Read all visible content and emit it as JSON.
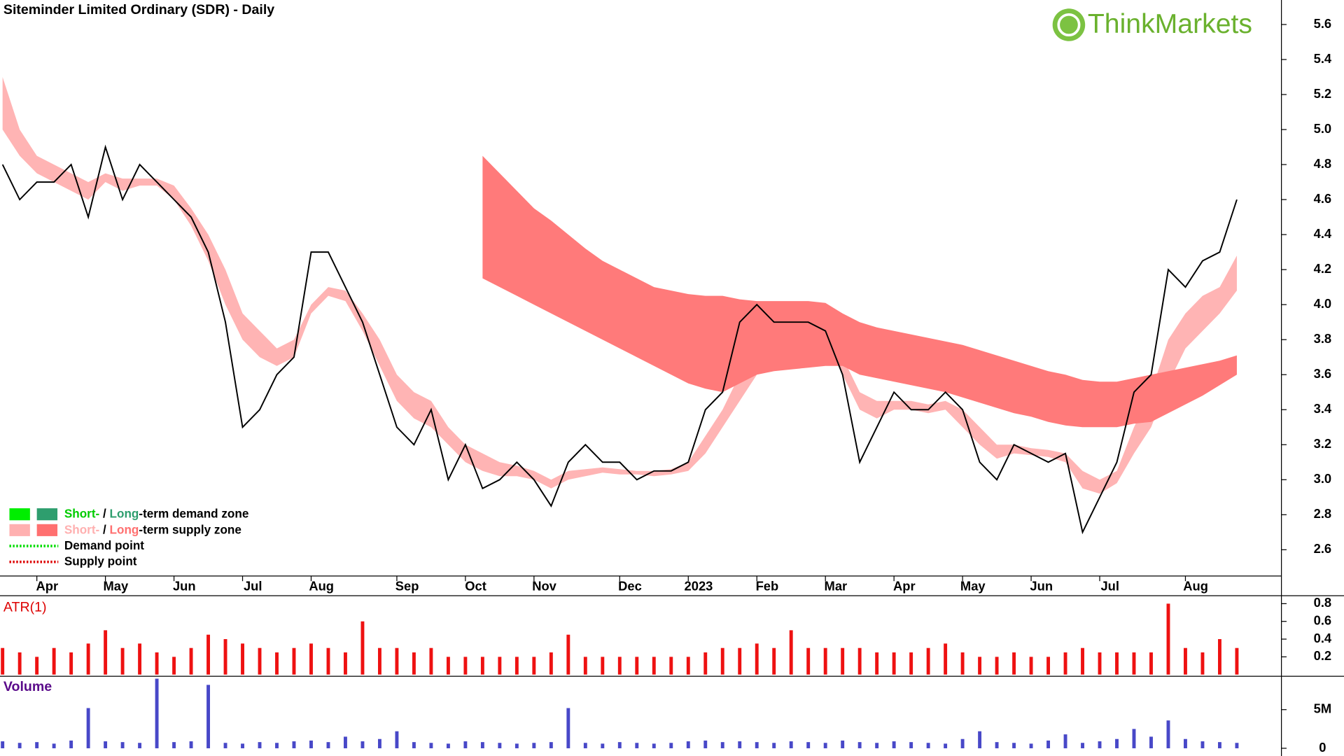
{
  "logo": "ThinkMarkets",
  "legend": {
    "position": "bottom-left",
    "items": [
      {
        "parts": [
          "Short-",
          " / ",
          "Long",
          "-term demand zone"
        ],
        "colors": [
          "#00ee00",
          "#2e9e6e"
        ],
        "text_colors": [
          "#00cc00",
          "#000000",
          "#2e9e6e",
          "#000000"
        ]
      },
      {
        "parts": [
          "Short-",
          " / ",
          "Long",
          "-term supply zone"
        ],
        "colors": [
          "#ffb0b0",
          "#ff7070"
        ],
        "text_colors": [
          "#ffb0b0",
          "#000000",
          "#ff7070",
          "#000000"
        ]
      },
      {
        "parts": [
          "Demand point"
        ],
        "colors": [
          "#00dd00"
        ],
        "style": "dotted"
      },
      {
        "parts": [
          "Supply point"
        ],
        "colors": [
          "#dd0000"
        ],
        "style": "dotted"
      }
    ]
  },
  "chart_data": [
    {
      "type": "line",
      "title": "Siteminder Limited Ordinary (SDR) - Daily",
      "categories": [
        null,
        null,
        "Apr",
        null,
        null,
        null,
        "May",
        null,
        null,
        null,
        "Jun",
        null,
        null,
        null,
        "Jul",
        null,
        null,
        null,
        "Aug",
        null,
        null,
        null,
        null,
        "Sep",
        null,
        null,
        null,
        "Oct",
        null,
        null,
        null,
        "Nov",
        null,
        null,
        null,
        null,
        "Dec",
        null,
        null,
        null,
        "2023",
        null,
        null,
        null,
        "Feb",
        null,
        null,
        null,
        "Mar",
        null,
        null,
        null,
        "Apr",
        null,
        null,
        null,
        "May",
        null,
        null,
        null,
        "Jun",
        null,
        null,
        null,
        "Jul",
        null,
        null,
        null,
        null,
        "Aug",
        null,
        null,
        null
      ],
      "color": "#000000",
      "values": [
        4.8,
        4.6,
        4.7,
        4.7,
        4.8,
        4.5,
        4.9,
        4.6,
        4.8,
        4.7,
        4.6,
        4.5,
        4.3,
        3.9,
        3.3,
        3.4,
        3.6,
        3.7,
        4.3,
        4.3,
        4.1,
        3.9,
        3.6,
        3.3,
        3.2,
        3.4,
        3.0,
        3.2,
        2.95,
        3.0,
        3.1,
        3.0,
        2.85,
        3.1,
        3.2,
        3.1,
        3.1,
        3.0,
        3.05,
        3.05,
        3.1,
        3.4,
        3.5,
        3.9,
        4.0,
        3.9,
        3.9,
        3.9,
        3.85,
        3.6,
        3.1,
        3.3,
        3.5,
        3.4,
        3.4,
        3.5,
        3.4,
        3.1,
        3.0,
        3.2,
        3.15,
        3.1,
        3.15,
        2.7,
        2.9,
        3.1,
        3.5,
        3.6,
        4.2,
        4.1,
        4.25,
        4.3,
        4.6
      ],
      "bands": [
        {
          "color": "#ffb4b4",
          "upper": [
            5.3,
            5.0,
            4.85,
            4.8,
            4.75,
            4.7,
            4.75,
            4.72,
            4.72,
            4.72,
            4.68,
            4.55,
            4.4,
            4.2,
            3.95,
            3.85,
            3.75,
            3.8,
            4.0,
            4.1,
            4.08,
            3.95,
            3.8,
            3.6,
            3.5,
            3.45,
            3.3,
            3.2,
            3.15,
            3.1,
            3.08,
            3.05,
            3.0,
            3.05,
            3.06,
            3.07,
            3.06,
            3.05,
            3.05,
            3.06,
            3.1,
            3.25,
            3.4,
            3.6,
            3.75,
            3.8,
            3.85,
            3.9,
            3.88,
            3.7,
            3.5,
            3.45,
            3.45,
            3.45,
            3.43,
            3.45,
            3.4,
            3.3,
            3.2,
            3.2,
            3.18,
            3.17,
            3.15,
            3.05,
            3.0,
            3.05,
            3.3,
            3.5,
            3.8,
            3.95,
            4.05,
            4.1,
            4.28
          ],
          "lower": [
            5.0,
            4.85,
            4.75,
            4.7,
            4.65,
            4.6,
            4.7,
            4.65,
            4.68,
            4.68,
            4.6,
            4.45,
            4.25,
            4.0,
            3.8,
            3.7,
            3.65,
            3.7,
            3.95,
            4.05,
            4.02,
            3.85,
            3.65,
            3.45,
            3.35,
            3.3,
            3.2,
            3.1,
            3.05,
            3.02,
            3.02,
            3.0,
            2.95,
            3.0,
            3.02,
            3.04,
            3.03,
            3.03,
            3.02,
            3.03,
            3.05,
            3.15,
            3.3,
            3.45,
            3.6,
            3.7,
            3.75,
            3.8,
            3.8,
            3.6,
            3.4,
            3.35,
            3.4,
            3.4,
            3.38,
            3.4,
            3.3,
            3.2,
            3.12,
            3.15,
            3.14,
            3.13,
            3.1,
            2.95,
            2.92,
            2.98,
            3.15,
            3.3,
            3.55,
            3.75,
            3.85,
            3.95,
            4.08
          ]
        },
        {
          "color": "#ff7a7a",
          "upper": [
            null,
            null,
            null,
            null,
            null,
            null,
            null,
            null,
            null,
            null,
            null,
            null,
            null,
            null,
            null,
            null,
            null,
            null,
            null,
            null,
            null,
            null,
            null,
            null,
            null,
            null,
            null,
            null,
            4.85,
            4.75,
            4.65,
            4.55,
            4.48,
            4.4,
            4.32,
            4.25,
            4.2,
            4.15,
            4.1,
            4.08,
            4.06,
            4.05,
            4.05,
            4.03,
            4.02,
            4.02,
            4.02,
            4.02,
            4.01,
            3.95,
            3.9,
            3.87,
            3.85,
            3.83,
            3.81,
            3.79,
            3.77,
            3.74,
            3.71,
            3.68,
            3.65,
            3.62,
            3.6,
            3.57,
            3.56,
            3.56,
            3.58,
            3.6,
            3.62,
            3.64,
            3.66,
            3.68,
            3.71
          ],
          "lower": [
            null,
            null,
            null,
            null,
            null,
            null,
            null,
            null,
            null,
            null,
            null,
            null,
            null,
            null,
            null,
            null,
            null,
            null,
            null,
            null,
            null,
            null,
            null,
            null,
            null,
            null,
            null,
            null,
            4.15,
            4.1,
            4.05,
            4.0,
            3.95,
            3.9,
            3.85,
            3.8,
            3.75,
            3.7,
            3.65,
            3.6,
            3.55,
            3.52,
            3.5,
            3.55,
            3.6,
            3.62,
            3.63,
            3.64,
            3.65,
            3.65,
            3.6,
            3.58,
            3.56,
            3.54,
            3.52,
            3.5,
            3.47,
            3.44,
            3.41,
            3.38,
            3.36,
            3.33,
            3.31,
            3.3,
            3.3,
            3.3,
            3.32,
            3.33,
            3.38,
            3.43,
            3.48,
            3.54,
            3.6
          ]
        }
      ],
      "ylim": [
        2.45,
        5.74
      ],
      "yticks": [
        2.6,
        2.8,
        {
          "value": 3.0,
          "label": "3.0"
        },
        3.2,
        3.4,
        3.6,
        3.8,
        {
          "value": 4.0,
          "label": "4.0"
        },
        4.2,
        4.4,
        4.6,
        4.8,
        {
          "value": 5.0,
          "label": "5.0"
        },
        5.2,
        5.4,
        5.6
      ]
    },
    {
      "type": "bar",
      "title": "ATR(1)",
      "color": "#ee1111",
      "values": [
        0.3,
        0.25,
        0.2,
        0.3,
        0.25,
        0.35,
        0.5,
        0.3,
        0.35,
        0.25,
        0.2,
        0.3,
        0.45,
        0.4,
        0.35,
        0.3,
        0.25,
        0.3,
        0.35,
        0.3,
        0.25,
        0.6,
        0.3,
        0.3,
        0.25,
        0.3,
        0.2,
        0.2,
        0.2,
        0.2,
        0.2,
        0.2,
        0.25,
        0.45,
        0.2,
        0.2,
        0.2,
        0.2,
        0.2,
        0.2,
        0.2,
        0.25,
        0.3,
        0.3,
        0.35,
        0.3,
        0.5,
        0.3,
        0.3,
        0.3,
        0.3,
        0.25,
        0.25,
        0.25,
        0.3,
        0.35,
        0.25,
        0.2,
        0.2,
        0.25,
        0.2,
        0.2,
        0.25,
        0.3,
        0.25,
        0.25,
        0.25,
        0.25,
        0.8,
        0.3,
        0.25,
        0.4,
        0.3
      ],
      "ylim": [
        0,
        0.88
      ],
      "yticks": [
        0.2,
        0.4,
        0.6,
        0.8
      ]
    },
    {
      "type": "bar",
      "title": "Volume",
      "color": "#4848c8",
      "values": [
        900000,
        700000,
        800000,
        600000,
        1000000,
        5200000,
        900000,
        800000,
        700000,
        9000000,
        800000,
        900000,
        8200000,
        700000,
        600000,
        800000,
        700000,
        900000,
        1000000,
        800000,
        1500000,
        900000,
        1200000,
        2200000,
        800000,
        700000,
        600000,
        900000,
        800000,
        700000,
        600000,
        700000,
        800000,
        5200000,
        700000,
        600000,
        800000,
        700000,
        600000,
        700000,
        900000,
        1000000,
        800000,
        900000,
        800000,
        700000,
        900000,
        800000,
        700000,
        1000000,
        800000,
        700000,
        900000,
        800000,
        700000,
        600000,
        1200000,
        2200000,
        800000,
        700000,
        600000,
        1000000,
        1800000,
        700000,
        900000,
        1200000,
        2500000,
        1500000,
        3600000,
        1200000,
        900000,
        800000,
        700000
      ],
      "ylim": [
        0,
        9200000
      ],
      "yticks": [
        0,
        {
          "value": 5000000,
          "label": "5M"
        }
      ]
    }
  ]
}
